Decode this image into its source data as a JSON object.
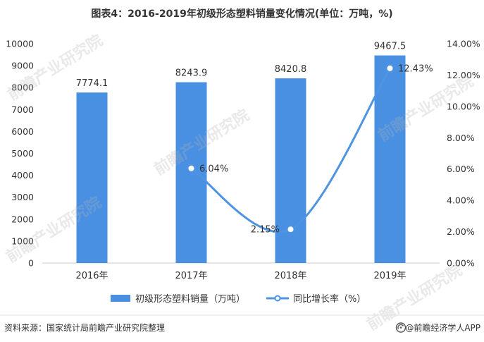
{
  "chart_data": {
    "type": "bar",
    "title": "图表4：2016-2019年初级形态塑料销量变化情况(单位：万吨，%)",
    "categories": [
      "2016年",
      "2017年",
      "2018年",
      "2019年"
    ],
    "series": [
      {
        "name": "初级形态塑料销量（万吨）",
        "type": "bar",
        "axis": "left",
        "values": [
          7774.1,
          8243.9,
          8420.8,
          9467.5
        ],
        "color": "#4a90e2"
      },
      {
        "name": "同比增长率（%）",
        "type": "line",
        "axis": "right",
        "smooth": true,
        "values": [
          null,
          6.04,
          2.15,
          12.43
        ],
        "color": "#4f94e0"
      }
    ],
    "ylim": [
      0,
      10000
    ],
    "y_tick_labels": [
      "0",
      "1000",
      "2000",
      "3000",
      "4000",
      "5000",
      "6000",
      "7000",
      "8000",
      "9000",
      "10000"
    ],
    "y2lim": [
      0,
      14
    ],
    "y2_tick_labels": [
      "0.00%",
      "2.00%",
      "4.00%",
      "6.00%",
      "8.00%",
      "10.00%",
      "12.00%",
      "14.00%"
    ],
    "grid": false,
    "legend": "bottom"
  },
  "source": "资料来源：国家统计局前瞻产业研究院整理",
  "brand": "@前瞻经济学人APP",
  "brand_icon": "qianzhan-logo-icon",
  "watermark": "前瞻产业研究院"
}
